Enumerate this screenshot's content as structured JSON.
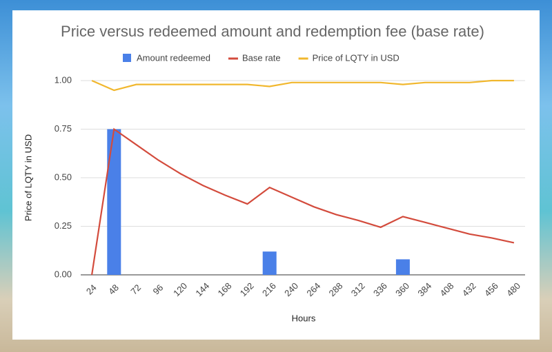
{
  "chart_data": {
    "type": "combo",
    "title": "Price versus redeemed amount and redemption fee (base rate)",
    "x_label": "Hours",
    "y_label": "Price of LQTY in USD",
    "categories": [
      "24",
      "48",
      "72",
      "96",
      "120",
      "144",
      "168",
      "192",
      "216",
      "240",
      "264",
      "288",
      "312",
      "336",
      "360",
      "384",
      "408",
      "432",
      "456",
      "480"
    ],
    "series": [
      {
        "name": "Amount redeemed",
        "kind": "bar",
        "color": "#4a80e8",
        "values": [
          0,
          0.75,
          0,
          0,
          0,
          0,
          0,
          0,
          0.12,
          0,
          0,
          0,
          0,
          0,
          0.08,
          0,
          0,
          0,
          0,
          0
        ]
      },
      {
        "name": "Base rate",
        "kind": "line",
        "color": "#d34b3c",
        "values": [
          0,
          0.75,
          0.67,
          0.59,
          0.52,
          0.46,
          0.41,
          0.365,
          0.45,
          0.4,
          0.35,
          0.31,
          0.28,
          0.245,
          0.3,
          0.27,
          0.24,
          0.21,
          0.19,
          0.165
        ]
      },
      {
        "name": "Price of LQTY in USD",
        "kind": "line",
        "color": "#f1b72d",
        "values": [
          1,
          0.95,
          0.98,
          0.98,
          0.98,
          0.98,
          0.98,
          0.98,
          0.97,
          0.99,
          0.99,
          0.99,
          0.99,
          0.99,
          0.98,
          0.99,
          0.99,
          0.99,
          1,
          1
        ]
      }
    ],
    "ylim": [
      0,
      1
    ],
    "yticks": [
      {
        "value": 0,
        "label": "0.00"
      },
      {
        "value": 0.25,
        "label": "0.25"
      },
      {
        "value": 0.5,
        "label": "0.50"
      },
      {
        "value": 0.75,
        "label": "0.75"
      },
      {
        "value": 1,
        "label": "1.00"
      }
    ],
    "grid": true
  }
}
